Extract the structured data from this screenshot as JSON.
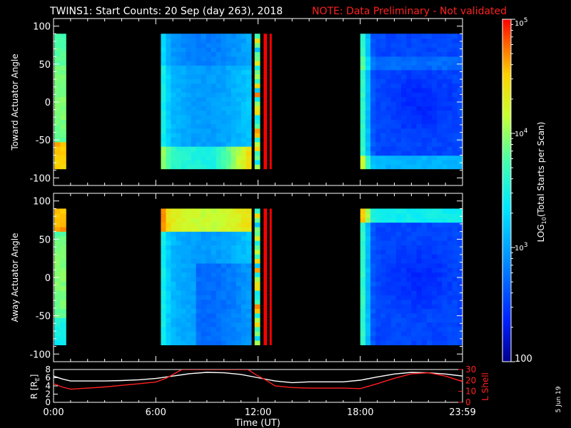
{
  "title": {
    "main": "TWINS1: Start Counts: 20 Sep (day 263), 2018",
    "note": "NOTE: Data Preliminary - Not validated",
    "note_color": "#ff2020"
  },
  "stamp": "5 Jun 19",
  "chart_data": [
    {
      "type": "heatmap",
      "name": "toward",
      "ylabel": "Toward Actuator Angle",
      "ylim": [
        -110,
        110
      ],
      "yticks": [
        -100,
        -50,
        0,
        50,
        100
      ],
      "xlim_hours": [
        0,
        24
      ],
      "angle_range": [
        -88,
        90
      ],
      "data_blocks_hours": [
        [
          0.05,
          0.72
        ],
        [
          6.3,
          11.6
        ],
        [
          11.8,
          12.1
        ],
        [
          12.33,
          12.5
        ],
        [
          12.68,
          12.78
        ],
        [
          18.0,
          24.0
        ]
      ]
    },
    {
      "type": "heatmap",
      "name": "away",
      "ylabel": "Away Actuator Angle",
      "ylim": [
        -110,
        110
      ],
      "yticks": [
        -100,
        -50,
        0,
        50,
        100
      ],
      "xlim_hours": [
        0,
        24
      ],
      "angle_range": [
        -88,
        90
      ],
      "data_blocks_hours": [
        [
          0.05,
          0.72
        ],
        [
          6.3,
          11.6
        ],
        [
          11.8,
          12.1
        ],
        [
          12.33,
          12.5
        ],
        [
          12.68,
          12.78
        ],
        [
          18.0,
          24.0
        ]
      ]
    },
    {
      "type": "line",
      "name": "orbit",
      "ylabel_left": "R [R",
      "ylabel_left_sub": "E",
      "ylabel_left_end": "]",
      "ylabel_right": "L Shell",
      "ylim_left": [
        0,
        8
      ],
      "ylim_right": [
        0,
        30
      ],
      "yticks_left": [
        "8",
        "6",
        "4",
        "2",
        "0"
      ],
      "yticks_right": [
        "30",
        "20",
        "10",
        "0"
      ],
      "xlabel": "Time (UT)",
      "xticks_hours": [
        0,
        6,
        12,
        18,
        24
      ],
      "xtick_labels": [
        "0:00",
        "6:00",
        "12:00",
        "18:00",
        "23:59"
      ],
      "series": [
        {
          "name": "R",
          "color": "#ffffff",
          "x": [
            0,
            0.5,
            1,
            2,
            3,
            4,
            5,
            6,
            7,
            8,
            9,
            10,
            11,
            12,
            13,
            14,
            15,
            16,
            17,
            18,
            19,
            20,
            21,
            22,
            23,
            24
          ],
          "y": [
            6.4,
            5.7,
            5.2,
            5.2,
            5.2,
            5.3,
            5.5,
            5.8,
            6.4,
            7.0,
            7.3,
            7.2,
            6.8,
            6.0,
            5.2,
            4.8,
            5.0,
            5.0,
            5.0,
            5.4,
            6.2,
            6.9,
            7.3,
            7.2,
            6.9,
            6.4
          ]
        },
        {
          "name": "L Shell",
          "color": "#ff2020",
          "x": [
            0,
            0.5,
            1,
            2,
            3,
            4,
            5,
            6,
            6.6,
            7.3,
            7.55,
            11.4,
            11.9,
            12.5,
            13,
            14,
            15,
            16,
            17,
            18,
            19,
            20,
            21,
            22,
            23,
            24
          ],
          "y": [
            17,
            14,
            12,
            13,
            14,
            15.5,
            17,
            18.5,
            22,
            28,
            30,
            30,
            25,
            20,
            15,
            13.5,
            13,
            13,
            13,
            12.5,
            17,
            22,
            26,
            27,
            24,
            19
          ]
        }
      ]
    }
  ],
  "colorbar": {
    "label_log": "LOG",
    "label_sub": "10",
    "label_rest": "(Total Starts per Scan)",
    "ticks": [
      {
        "base": "10",
        "exp": "5",
        "value": 5
      },
      {
        "base": "10",
        "exp": "4",
        "value": 4
      },
      {
        "base": "10",
        "exp": "3",
        "value": 3
      },
      {
        "base": "100",
        "exp": "",
        "value": 2
      }
    ],
    "range_log": [
      2,
      5
    ]
  }
}
